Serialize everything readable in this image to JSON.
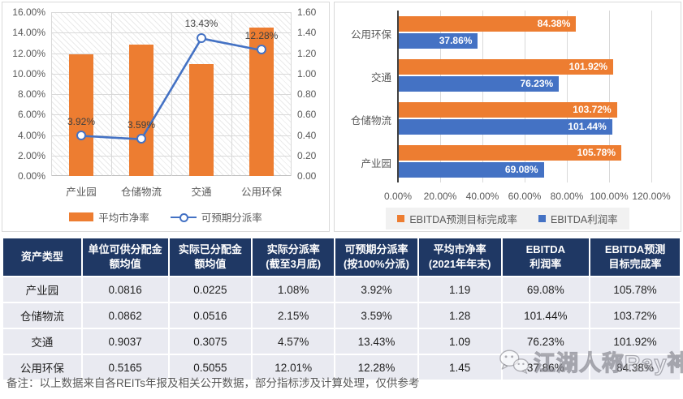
{
  "colors": {
    "orange": "#ED7D31",
    "blue": "#4472C4",
    "header_bg": "#1F3864",
    "row_bg": "#E9EAF1",
    "grid": "#D9D9D9",
    "axis_text": "#595959"
  },
  "chart_data": [
    {
      "type": "bar",
      "subtype": "combo-bar-line",
      "categories": [
        "产业园",
        "仓储物流",
        "交通",
        "公用环保"
      ],
      "series": [
        {
          "name": "平均市净率",
          "kind": "bar",
          "axis": "right",
          "values": [
            1.19,
            1.28,
            1.09,
            1.45
          ]
        },
        {
          "name": "可预期分派率",
          "kind": "line",
          "axis": "left",
          "values": [
            3.92,
            3.59,
            13.43,
            12.28
          ],
          "point_labels": [
            "3.92%",
            "3.59%",
            "13.43%",
            "12.28%"
          ]
        }
      ],
      "left_axis": {
        "min": 0,
        "max": 16,
        "ticks": [
          "16.00%",
          "14.00%",
          "12.00%",
          "10.00%",
          "8.00%",
          "6.00%",
          "4.00%",
          "2.00%",
          "0.00%"
        ]
      },
      "right_axis": {
        "min": 0,
        "max": 1.6,
        "ticks": [
          "1.60",
          "1.40",
          "1.20",
          "1.00",
          "0.80",
          "0.60",
          "0.40",
          "0.20",
          "0.00"
        ]
      },
      "grid": true,
      "legend_position": "bottom"
    },
    {
      "type": "bar",
      "subtype": "horizontal-grouped",
      "categories": [
        "公用环保",
        "交通",
        "仓储物流",
        "产业园"
      ],
      "series": [
        {
          "name": "EBITDA预测目标完成率",
          "values": [
            84.38,
            101.92,
            103.72,
            105.78
          ],
          "point_labels": [
            "84.38%",
            "101.92%",
            "103.72%",
            "105.78%"
          ]
        },
        {
          "name": "EBITDA利润率",
          "values": [
            37.86,
            76.23,
            101.44,
            69.08
          ],
          "point_labels": [
            "37.86%",
            "76.23%",
            "101.44%",
            "69.08%"
          ]
        }
      ],
      "x_axis": {
        "min": 0,
        "max": 120,
        "ticks": [
          "0.00%",
          "20.00%",
          "40.00%",
          "60.00%",
          "80.00%",
          "100.00%",
          "120.00%"
        ]
      },
      "grid": true,
      "legend_position": "bottom"
    }
  ],
  "table": {
    "headers": [
      "资产类型",
      "单位可供分配金\n额均值",
      "实际已分配金\n额均值",
      "实际分派率\n(截至3月底)",
      "可预期分派率\n(按100%分派)",
      "平均市净率\n(2021年年末)",
      "EBITDA\n利润率",
      "EBITDA预测\n目标完成率"
    ],
    "rows": [
      [
        "产业园",
        "0.0816",
        "0.0225",
        "1.08%",
        "3.92%",
        "1.19",
        "69.08%",
        "105.78%"
      ],
      [
        "仓储物流",
        "0.0862",
        "0.0516",
        "2.15%",
        "3.59%",
        "1.28",
        "101.44%",
        "103.72%"
      ],
      [
        "交通",
        "0.9037",
        "0.3075",
        "4.57%",
        "13.43%",
        "1.09",
        "76.23%",
        "101.92%"
      ],
      [
        "公用环保",
        "0.5165",
        "0.5055",
        "12.01%",
        "12.28%",
        "1.45",
        "37.86%",
        "84.38%"
      ]
    ]
  },
  "footnote": "备注：以上数据来自各REITs年报及相关公开数据，部分指标涉及计算处理，仅供参考",
  "watermark": {
    "text": "江湖人称Ray神",
    "icon": "wechat-icon"
  }
}
